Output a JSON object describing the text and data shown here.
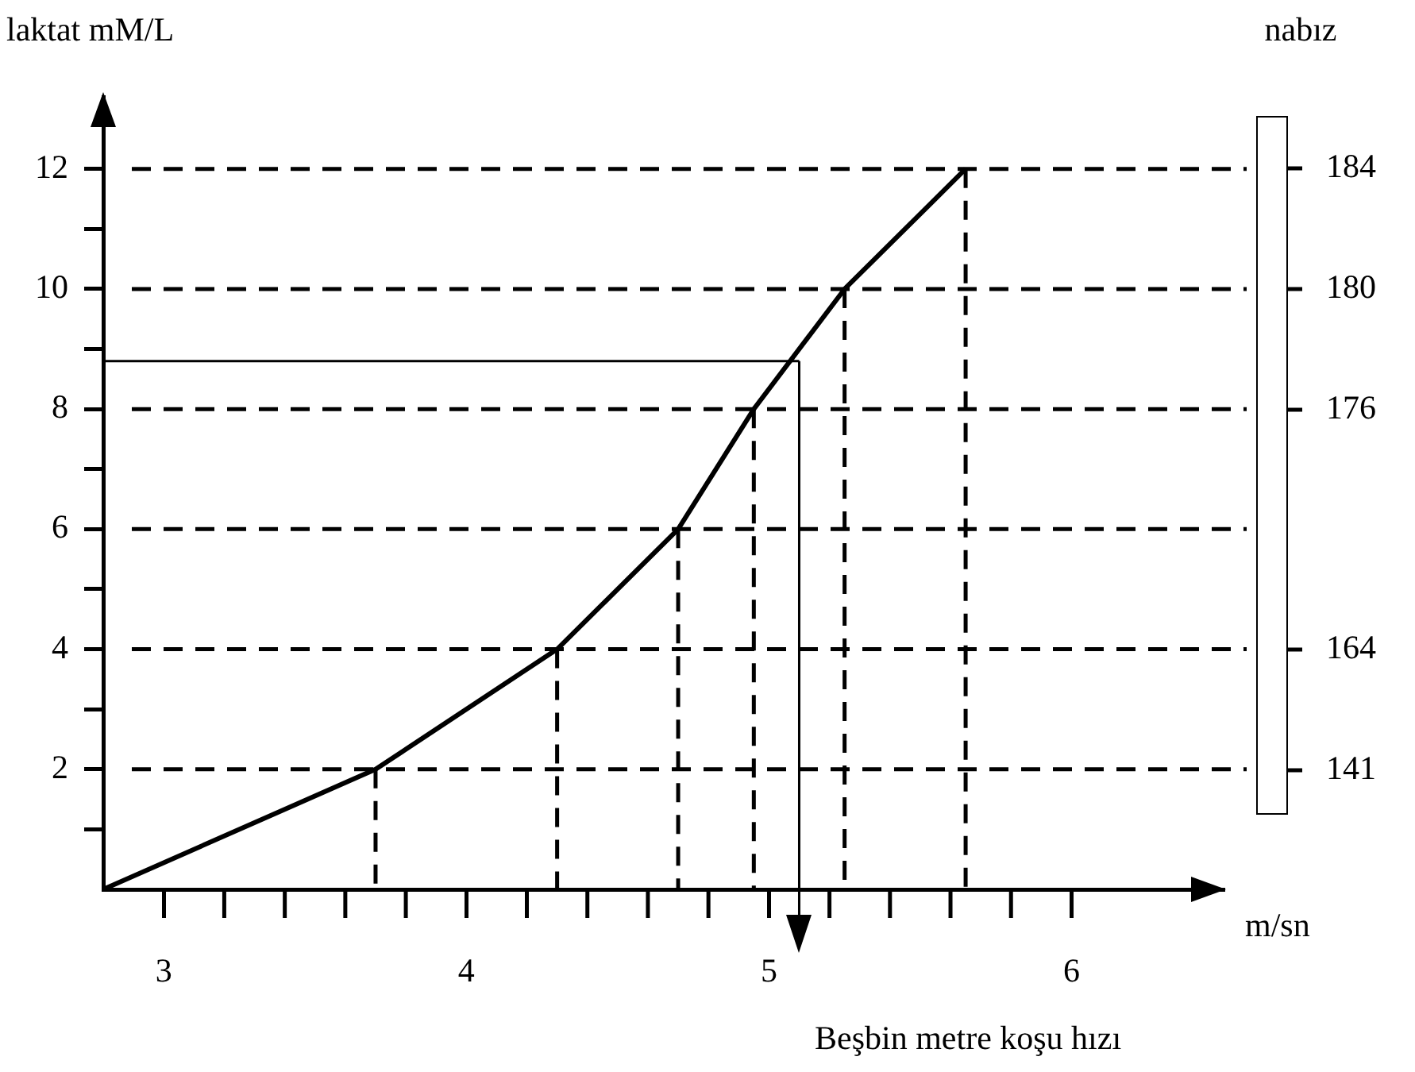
{
  "chart_data": {
    "type": "line",
    "xlabel": "m/sn",
    "ylabel": "laktat mM/L",
    "y2label": "nabız",
    "x": [
      2.8,
      3.7,
      4.3,
      4.7,
      4.95,
      5.25,
      5.65
    ],
    "series": [
      {
        "color": "#000000",
        "values": [
          0,
          2,
          4,
          6,
          8,
          10,
          12
        ]
      }
    ],
    "xlim": [
      2.8,
      6.5
    ],
    "xticks": [
      3,
      4,
      5,
      6
    ],
    "ylim": [
      0,
      13.2
    ],
    "yticks": [
      {
        "value": 1,
        "label": null
      },
      2,
      {
        "value": 3,
        "label": null
      },
      4,
      {
        "value": 5,
        "label": null
      },
      6,
      {
        "value": 7,
        "label": null
      },
      8,
      {
        "value": 9,
        "label": null
      },
      10,
      {
        "value": 11,
        "label": null
      },
      12
    ],
    "ref_lines": [
      {
        "axis": "y",
        "value": 2,
        "line_style": "dashed"
      },
      {
        "axis": "y",
        "value": 4,
        "line_style": "dashed"
      },
      {
        "axis": "y",
        "value": 6,
        "line_style": "dashed"
      },
      {
        "axis": "y",
        "value": 8,
        "line_style": "dashed"
      },
      {
        "axis": "y",
        "value": 10,
        "line_style": "dashed"
      },
      {
        "axis": "y",
        "value": 12,
        "line_style": "dashed"
      },
      {
        "axis": "x",
        "value": 3.7,
        "line_style": "dashed"
      },
      {
        "axis": "x",
        "value": 4.3,
        "line_style": "dashed"
      },
      {
        "axis": "x",
        "value": 4.7,
        "line_style": "dashed"
      },
      {
        "axis": "x",
        "value": 4.95,
        "line_style": "dashed"
      },
      {
        "axis": "x",
        "value": 5.25,
        "line_style": "dashed"
      },
      {
        "axis": "x",
        "value": 5.65,
        "line_style": "dashed"
      },
      {
        "axis": "y",
        "value": 8.8,
        "line_style": "solid"
      },
      {
        "axis": "x",
        "value": 5.1,
        "line_style": "solid"
      }
    ],
    "annotations": [
      "184",
      "180",
      "176",
      "164",
      "141",
      "Beşbin metre koşu hızı"
    ],
    "legend": false,
    "grid": false,
    "marker": "none",
    "line_style": "solid"
  }
}
